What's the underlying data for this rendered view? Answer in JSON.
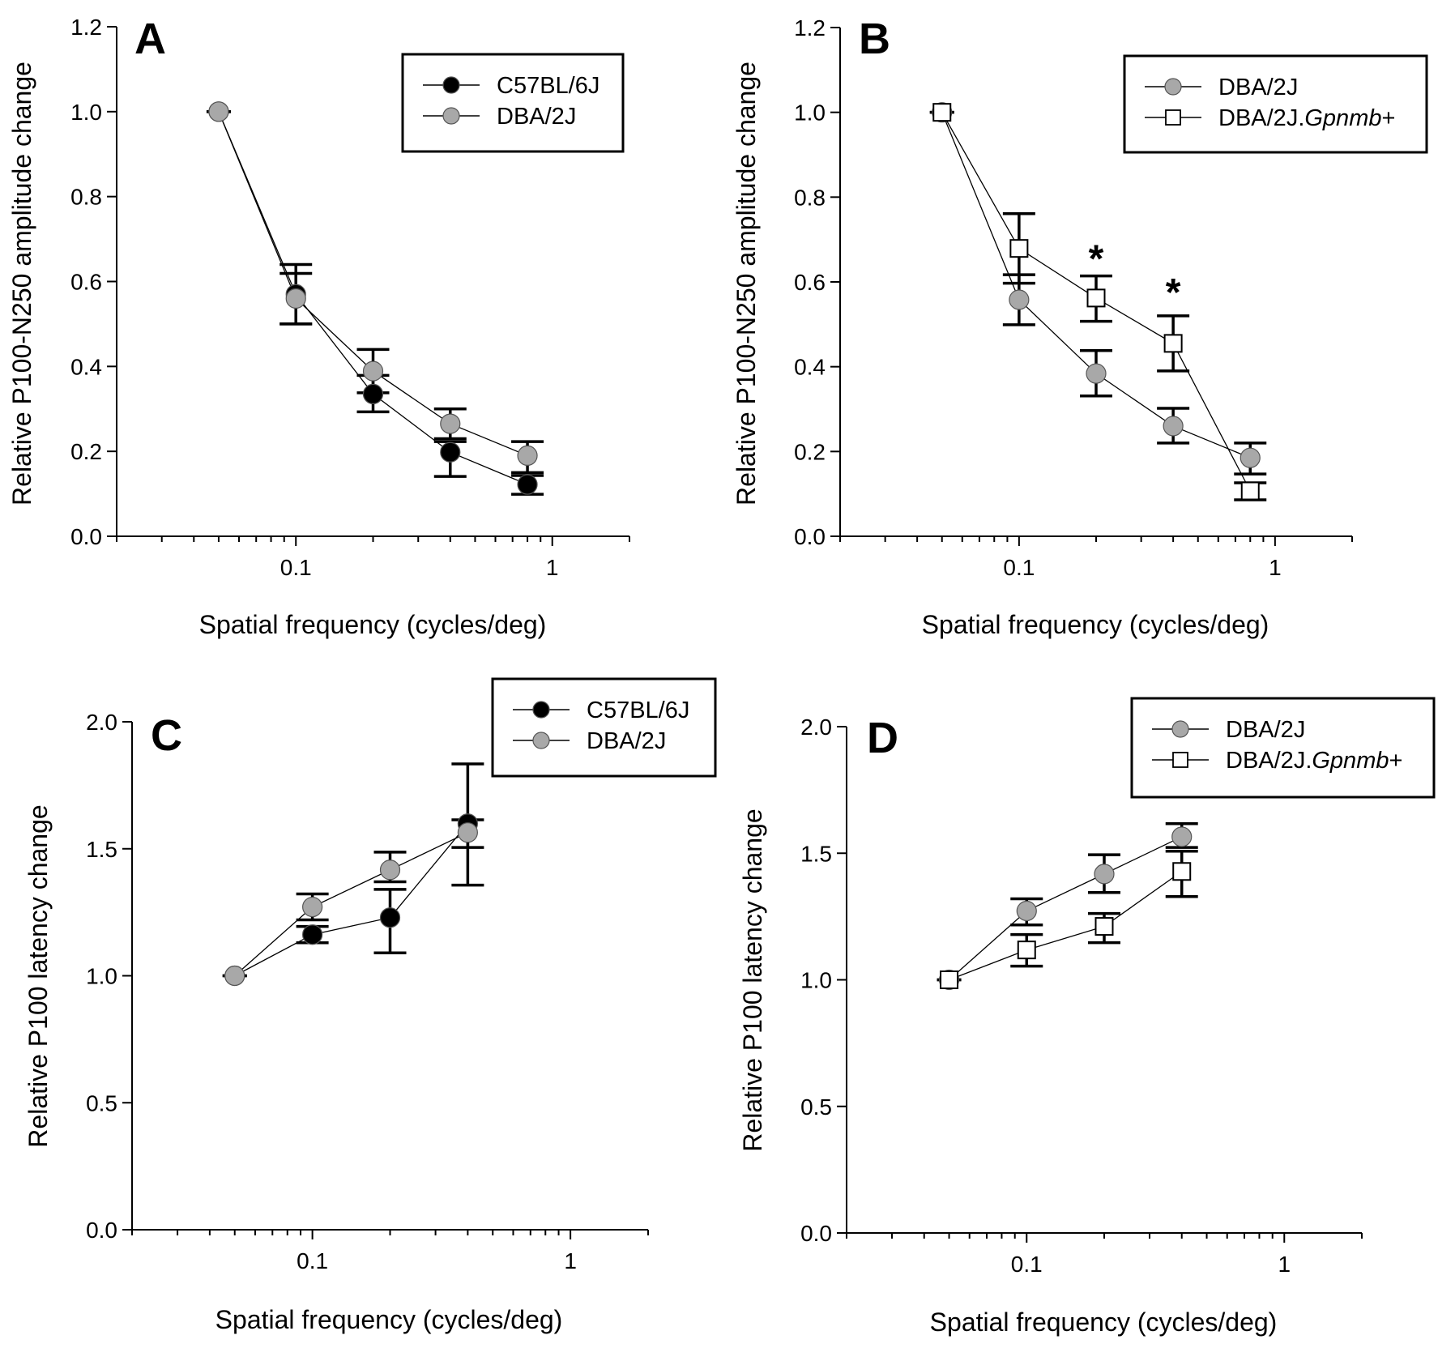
{
  "figure": {
    "panels_count": 4
  },
  "chart_data": [
    {
      "panel": "A",
      "type": "line",
      "title": "",
      "panel_label": "A",
      "xlabel": "Spatial frequency (cycles/deg)",
      "ylabel": "Relative P100-N250 amplitude change",
      "xscale": "log",
      "xlim": [
        0.02,
        2
      ],
      "ylim": [
        0,
        1.2
      ],
      "xticks": [
        0.1,
        1
      ],
      "xtick_labels": [
        "0.1",
        "1"
      ],
      "yticks": [
        0,
        0.2,
        0.4,
        0.6,
        0.8,
        1.0,
        1.2
      ],
      "ytick_labels": [
        "0.0",
        "0.2",
        "0.4",
        "0.6",
        "0.8",
        "1.0",
        "1.2"
      ],
      "grid": false,
      "legend_position": "top-right",
      "series": [
        {
          "name": "C57BL/6J",
          "marker": "circle",
          "color": "#000000",
          "x": [
            0.05,
            0.1,
            0.2,
            0.4,
            0.8
          ],
          "y": [
            1.0,
            0.57,
            0.335,
            0.198,
            0.122
          ],
          "err_upper": [
            1.0,
            0.64,
            0.379,
            0.223,
            0.143
          ],
          "err_lower": [
            1.0,
            0.5,
            0.293,
            0.141,
            0.099
          ]
        },
        {
          "name": "DBA/2J",
          "marker": "circle",
          "color": "#a8a8a8",
          "x": [
            0.05,
            0.1,
            0.2,
            0.4,
            0.8
          ],
          "y": [
            1.0,
            0.56,
            0.389,
            0.265,
            0.19
          ],
          "err_upper": [
            1.0,
            0.619,
            0.44,
            0.3,
            0.223
          ],
          "err_lower": [
            1.0,
            0.5,
            0.338,
            0.23,
            0.15
          ]
        }
      ],
      "annotations": []
    },
    {
      "panel": "B",
      "type": "line",
      "title": "",
      "panel_label": "B",
      "xlabel": "Spatial frequency (cycles/deg)",
      "ylabel": "Relative P100-N250 amplitude change",
      "xscale": "log",
      "xlim": [
        0.02,
        2
      ],
      "ylim": [
        0,
        1.2
      ],
      "xticks": [
        0.1,
        1
      ],
      "xtick_labels": [
        "0.1",
        "1"
      ],
      "yticks": [
        0,
        0.2,
        0.4,
        0.6,
        0.8,
        1.0,
        1.2
      ],
      "ytick_labels": [
        "0.0",
        "0.2",
        "0.4",
        "0.6",
        "0.8",
        "1.0",
        "1.2"
      ],
      "grid": false,
      "legend_position": "top-right",
      "series": [
        {
          "name": "DBA/2J",
          "marker": "circle",
          "color": "#a8a8a8",
          "x": [
            0.05,
            0.1,
            0.2,
            0.4,
            0.8
          ],
          "y": [
            1.0,
            0.558,
            0.384,
            0.26,
            0.185
          ],
          "err_upper": [
            1.0,
            0.617,
            0.438,
            0.302,
            0.22
          ],
          "err_lower": [
            1.0,
            0.499,
            0.331,
            0.22,
            0.147
          ]
        },
        {
          "name": "DBA/2J.Gpnmb+",
          "name_plain": "DBA/2J.",
          "name_italic": "Gpnmb",
          "name_suffix": "+",
          "marker": "square",
          "color": "#ffffff",
          "x": [
            0.05,
            0.1,
            0.2,
            0.4,
            0.8
          ],
          "y": [
            1.0,
            0.679,
            0.562,
            0.455,
            0.107
          ],
          "err_upper": [
            1.0,
            0.761,
            0.614,
            0.52,
            0.126
          ],
          "err_lower": [
            1.0,
            0.597,
            0.507,
            0.39,
            0.086
          ]
        }
      ],
      "annotations": [
        {
          "text": "*",
          "x": 0.2,
          "y": 0.67
        },
        {
          "text": "*",
          "x": 0.4,
          "y": 0.59
        }
      ]
    },
    {
      "panel": "C",
      "type": "line",
      "title": "",
      "panel_label": "C",
      "xlabel": "Spatial frequency (cycles/deg)",
      "ylabel": "Relative P100 latency change",
      "xscale": "log",
      "xlim": [
        0.02,
        2
      ],
      "ylim": [
        0,
        2.0
      ],
      "xticks": [
        0.1,
        1
      ],
      "xtick_labels": [
        "0.1",
        "1"
      ],
      "yticks": [
        0,
        0.5,
        1.0,
        1.5,
        2.0
      ],
      "ytick_labels": [
        "0.0",
        "0.5",
        "1.0",
        "1.5",
        "2.0"
      ],
      "grid": false,
      "legend_position": "top-right",
      "series": [
        {
          "name": "C57BL/6J",
          "marker": "circle",
          "color": "#000000",
          "x": [
            0.05,
            0.1,
            0.2,
            0.4
          ],
          "y": [
            1.0,
            1.162,
            1.229,
            1.599
          ],
          "err_upper": [
            1.0,
            1.194,
            1.34,
            1.834
          ],
          "err_lower": [
            1.0,
            1.13,
            1.09,
            1.357
          ]
        },
        {
          "name": "DBA/2J",
          "marker": "circle",
          "color": "#a8a8a8",
          "x": [
            0.05,
            0.1,
            0.2,
            0.4
          ],
          "y": [
            1.0,
            1.271,
            1.417,
            1.564
          ],
          "err_upper": [
            1.0,
            1.322,
            1.487,
            1.614
          ],
          "err_lower": [
            1.0,
            1.22,
            1.37,
            1.505
          ]
        }
      ],
      "annotations": []
    },
    {
      "panel": "D",
      "type": "line",
      "title": "",
      "panel_label": "D",
      "xlabel": "Spatial frequency (cycles/deg)",
      "ylabel": "Relative P100 latency change",
      "xscale": "log",
      "xlim": [
        0.02,
        2
      ],
      "ylim": [
        0,
        2.0
      ],
      "xticks": [
        0.1,
        1
      ],
      "xtick_labels": [
        "0.1",
        "1"
      ],
      "yticks": [
        0,
        0.5,
        1.0,
        1.5,
        2.0
      ],
      "ytick_labels": [
        "0.0",
        "0.5",
        "1.0",
        "1.5",
        "2.0"
      ],
      "grid": false,
      "legend_position": "top-right",
      "series": [
        {
          "name": "DBA/2J",
          "marker": "circle",
          "color": "#a8a8a8",
          "x": [
            0.05,
            0.1,
            0.2,
            0.4
          ],
          "y": [
            1.0,
            1.272,
            1.418,
            1.565
          ],
          "err_upper": [
            1.0,
            1.32,
            1.494,
            1.617
          ],
          "err_lower": [
            1.0,
            1.217,
            1.345,
            1.523
          ]
        },
        {
          "name": "DBA/2J.Gpnmb+",
          "name_plain": "DBA/2J.",
          "name_italic": "Gpnmb",
          "name_suffix": "+",
          "marker": "square",
          "color": "#ffffff",
          "x": [
            0.05,
            0.1,
            0.2,
            0.4
          ],
          "y": [
            1.0,
            1.118,
            1.211,
            1.428
          ],
          "err_upper": [
            1.0,
            1.179,
            1.262,
            1.508
          ],
          "err_lower": [
            1.0,
            1.054,
            1.147,
            1.329
          ]
        }
      ],
      "annotations": []
    }
  ]
}
